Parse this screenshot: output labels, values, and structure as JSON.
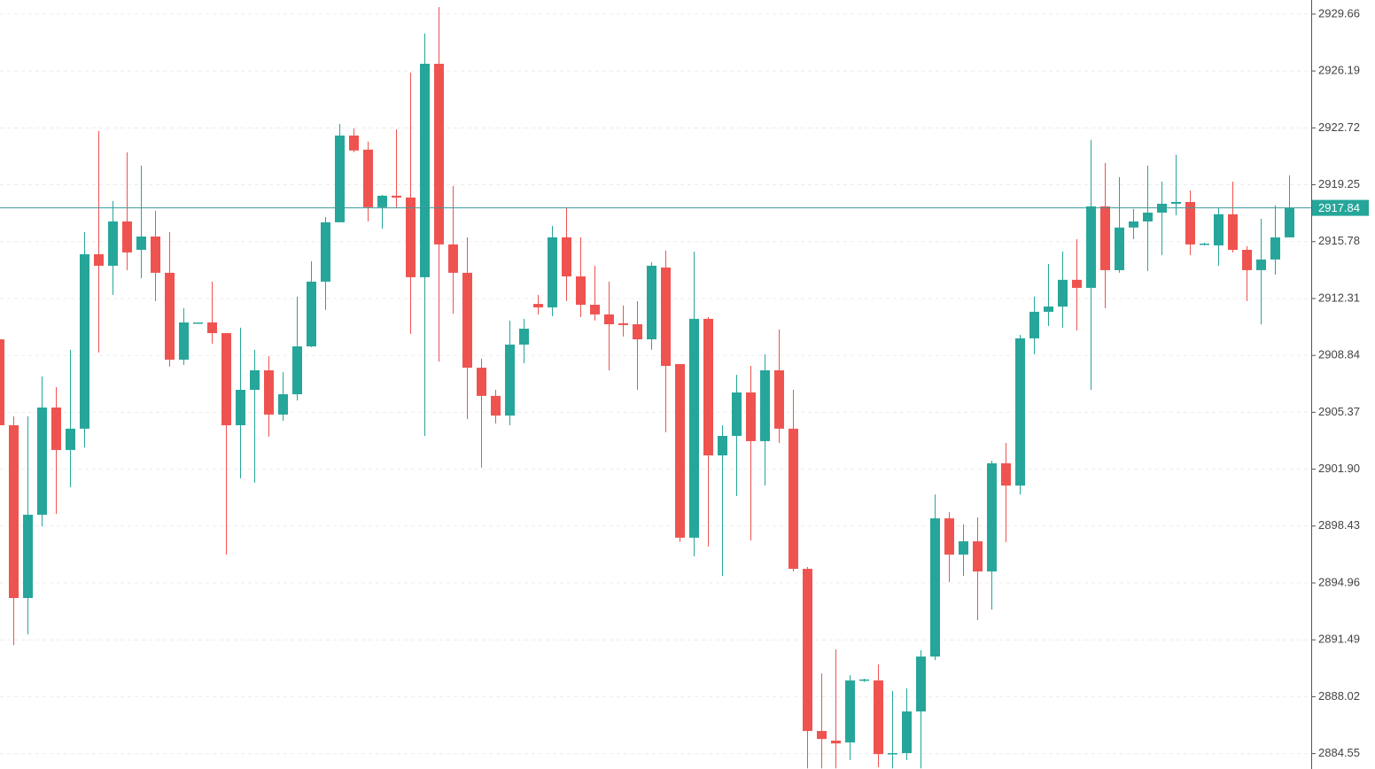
{
  "chart_data": {
    "type": "candlestick",
    "up_color": "#26a69a",
    "down_color": "#ef5350",
    "grid": true,
    "last_price": 2917.84,
    "ylim": [
      2883.61,
      2930.52
    ],
    "yticks": [
      2929.66,
      2926.19,
      2922.72,
      2919.25,
      2915.78,
      2912.31,
      2908.84,
      2905.37,
      {
        "value": 2901.9,
        "label": "2901.90"
      },
      2898.43,
      2894.96,
      2891.49,
      2888.02,
      2884.55
    ],
    "open": [
      2909.82,
      2904.58,
      2894.04,
      2899.12,
      2905.66,
      2903.07,
      2904.37,
      2915.01,
      2914.31,
      2917.01,
      2915.28,
      2916.09,
      2913.88,
      2908.58,
      2910.8,
      2910.85,
      2910.2,
      2904.58,
      2906.74,
      2907.93,
      2905.23,
      2906.47,
      2909.39,
      2913.34,
      2916.96,
      2922.25,
      2921.39,
      2917.88,
      2918.58,
      2918.47,
      2913.61,
      2926.63,
      2915.61,
      2913.88,
      2908.09,
      2906.37,
      2905.17,
      2909.5,
      2911.98,
      2911.77,
      2916.04,
      2913.66,
      2911.93,
      2911.34,
      2910.8,
      2910.74,
      2909.82,
      2914.2,
      2908.31,
      2897.72,
      2911.07,
      2902.74,
      2903.93,
      2906.58,
      2903.61,
      2907.93,
      2904.37,
      2895.82,
      2885.93,
      2885.34,
      2885.23,
      2889.01,
      2889.01,
      2884.52,
      2884.58,
      2887.12,
      2890.47,
      2898.9,
      2896.69,
      2897.5,
      2895.66,
      2902.26,
      2900.9,
      2909.88,
      2911.5,
      2911.82,
      2913.45,
      2912.96,
      2917.93,
      2914.04,
      2916.64,
      2917.01,
      2917.55,
      2918.09,
      2918.2,
      2915.61,
      2915.55,
      2917.45,
      2915.28,
      2914.04,
      2914.69,
      2916.04
    ],
    "high": [
      2909.9,
      2905.12,
      2905.12,
      2907.55,
      2906.9,
      2909.18,
      2916.36,
      2922.53,
      2918.26,
      2921.23,
      2920.42,
      2917.66,
      2916.36,
      2911.72,
      2910.85,
      2913.34,
      2910.2,
      2910.53,
      2909.18,
      2908.8,
      2907.82,
      2912.42,
      2914.58,
      2917.28,
      2922.96,
      2922.69,
      2921.88,
      2918.63,
      2922.63,
      2926.09,
      2928.47,
      2930.09,
      2919.18,
      2916.04,
      2908.63,
      2906.74,
      2910.96,
      2911.07,
      2912.53,
      2916.74,
      2917.82,
      2916.04,
      2914.31,
      2913.34,
      2911.88,
      2912.15,
      2914.53,
      2915.23,
      2908.31,
      2915.17,
      2911.18,
      2904.58,
      2907.66,
      2908.2,
      2908.9,
      2910.42,
      2906.74,
      2895.93,
      2889.44,
      2890.9,
      2889.34,
      2889.12,
      2889.99,
      2888.36,
      2888.53,
      2890.85,
      2900.36,
      2899.28,
      2898.53,
      2898.96,
      2902.42,
      2903.5,
      2910.1,
      2912.42,
      2914.42,
      2915.17,
      2915.93,
      2921.99,
      2920.58,
      2919.71,
      2917.77,
      2920.42,
      2919.44,
      2921.07,
      2918.9,
      2915.72,
      2917.82,
      2919.44,
      2915.5,
      2917.17,
      2917.99,
      2919.82
    ],
    "low": [
      2904.5,
      2891.17,
      2891.83,
      2898.42,
      2899.17,
      2900.8,
      2903.23,
      2909.01,
      2912.53,
      2914.04,
      2913.55,
      2912.15,
      2908.15,
      2908.26,
      2910.8,
      2909.55,
      2896.69,
      2901.34,
      2901.07,
      2903.88,
      2904.85,
      2906.09,
      2909.34,
      2911.61,
      2916.96,
      2921.23,
      2917.01,
      2916.58,
      2917.82,
      2910.15,
      2903.93,
      2908.47,
      2911.39,
      2904.96,
      2901.99,
      2904.69,
      2904.58,
      2908.36,
      2911.34,
      2911.23,
      2912.15,
      2911.18,
      2910.96,
      2907.93,
      2909.99,
      2906.74,
      2909.18,
      2904.15,
      2897.45,
      2896.58,
      2897.18,
      2895.39,
      2900.26,
      2897.55,
      2900.9,
      2903.5,
      2895.66,
      2883.65,
      2883.65,
      2883.65,
      2884.15,
      2888.91,
      2883.71,
      2883.65,
      2884.15,
      2883.65,
      2890.25,
      2895.01,
      2895.39,
      2892.69,
      2893.34,
      2897.45,
      2900.36,
      2908.91,
      2910.63,
      2910.53,
      2910.36,
      2906.74,
      2911.72,
      2913.88,
      2915.93,
      2913.99,
      2914.96,
      2917.39,
      2914.96,
      2915.55,
      2914.31,
      2915.12,
      2912.15,
      2910.74,
      2913.77,
      2916.04
    ],
    "close": [
      2904.58,
      2894.04,
      2899.12,
      2905.66,
      2903.07,
      2904.37,
      2915.01,
      2914.31,
      2917.01,
      2915.12,
      2916.09,
      2913.88,
      2908.58,
      2910.85,
      2910.85,
      2910.2,
      2904.58,
      2906.74,
      2907.93,
      2905.23,
      2906.47,
      2909.39,
      2913.34,
      2916.96,
      2922.25,
      2921.34,
      2917.88,
      2918.58,
      2918.47,
      2913.61,
      2926.63,
      2915.61,
      2913.88,
      2908.09,
      2906.37,
      2905.17,
      2909.5,
      2910.47,
      2911.77,
      2916.04,
      2913.66,
      2911.93,
      2911.34,
      2910.74,
      2910.69,
      2909.82,
      2914.31,
      2908.2,
      2897.72,
      2911.07,
      2902.74,
      2903.93,
      2906.58,
      2903.61,
      2907.93,
      2904.37,
      2895.82,
      2885.93,
      2885.44,
      2885.17,
      2889.01,
      2889.07,
      2884.52,
      2884.58,
      2887.12,
      2890.47,
      2898.9,
      2896.69,
      2897.5,
      2895.66,
      2902.26,
      2900.9,
      2909.88,
      2911.5,
      2911.82,
      2913.45,
      2912.96,
      2917.93,
      2914.04,
      2916.64,
      2917.01,
      2917.55,
      2918.09,
      2918.2,
      2915.61,
      2915.66,
      2917.45,
      2915.28,
      2914.04,
      2914.69,
      2916.04,
      2917.84
    ]
  }
}
